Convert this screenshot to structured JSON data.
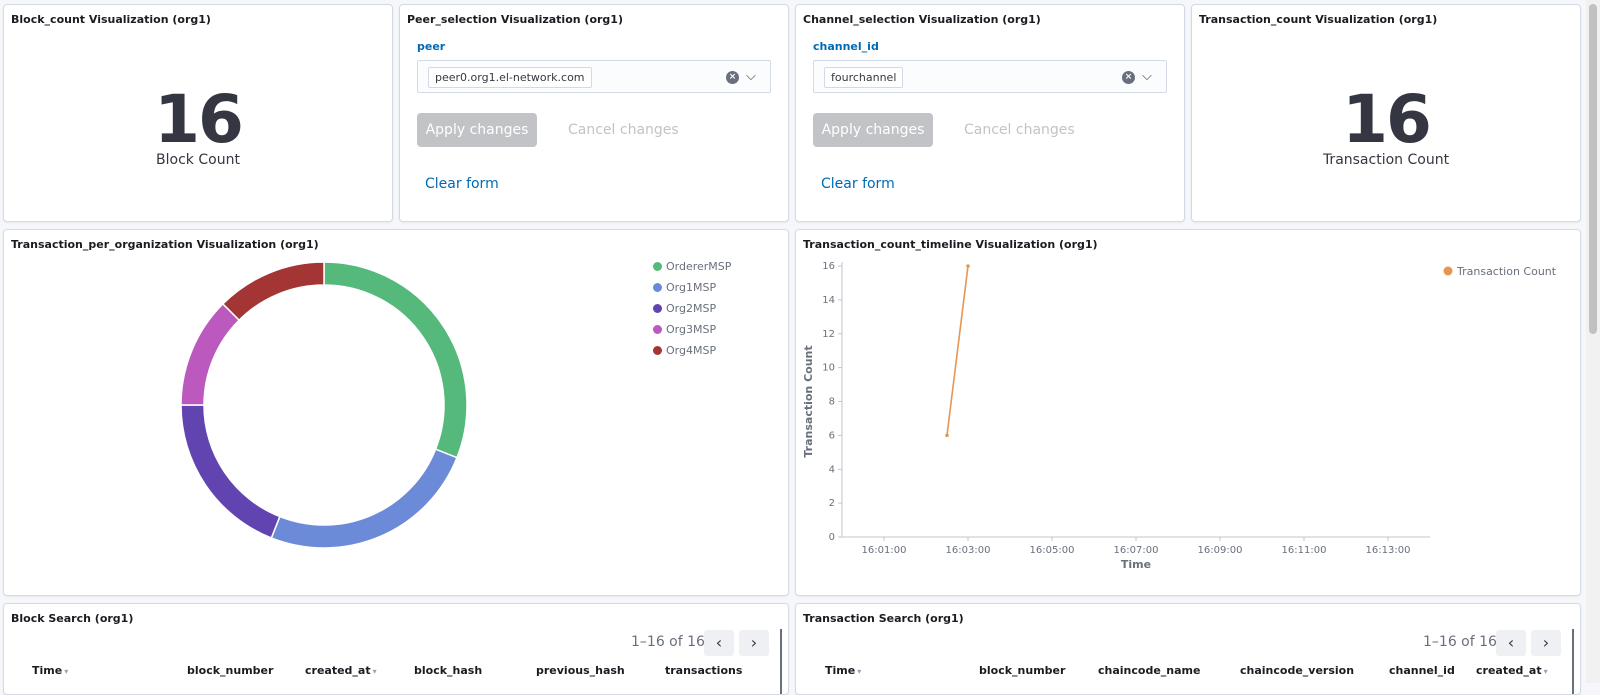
{
  "block_count": {
    "title": "Block_count Visualization (org1)",
    "value": "16",
    "label": "Block Count"
  },
  "peer_selection": {
    "title": "Peer_selection Visualization (org1)",
    "field_label": "peer",
    "selected_value": "peer0.org1.el-network.com",
    "apply_label": "Apply changes",
    "cancel_label": "Cancel changes",
    "clear_label": "Clear form"
  },
  "channel_selection": {
    "title": "Channel_selection Visualization (org1)",
    "field_label": "channel_id",
    "selected_value": "fourchannel",
    "apply_label": "Apply changes",
    "cancel_label": "Cancel changes",
    "clear_label": "Clear form"
  },
  "transaction_count": {
    "title": "Transaction_count Visualization (org1)",
    "value": "16",
    "label": "Transaction Count"
  },
  "tx_per_org": {
    "title": "Transaction_per_organization Visualization (org1)"
  },
  "tx_timeline": {
    "title": "Transaction_count_timeline Visualization (org1)"
  },
  "chart_data": [
    {
      "type": "pie",
      "donut": true,
      "categories": [
        "OrdererMSP",
        "Org1MSP",
        "Org2MSP",
        "Org3MSP",
        "Org4MSP"
      ],
      "values": [
        31,
        25,
        19,
        12.5,
        12.5
      ],
      "colors": [
        "#54b97b",
        "#6b8ad8",
        "#6244b1",
        "#bb59be",
        "#a33535"
      ],
      "legend_position": "top-right",
      "title": ""
    },
    {
      "type": "line",
      "series": [
        {
          "name": "Transaction Count",
          "color": "#e7964f",
          "points": [
            [
              "16:02:30",
              6
            ],
            [
              "16:03:00",
              16
            ]
          ]
        }
      ],
      "xlabel": "Time",
      "ylabel": "Transaction Count",
      "x_ticks": [
        "16:01:00",
        "16:03:00",
        "16:05:00",
        "16:07:00",
        "16:09:00",
        "16:11:00",
        "16:13:00"
      ],
      "y_ticks": [
        "0",
        "2",
        "4",
        "6",
        "8",
        "10",
        "12",
        "14",
        "16"
      ],
      "xlim": [
        "16:00:00",
        "16:14:00"
      ],
      "ylim": [
        0,
        16
      ],
      "legend_position": "top-right"
    }
  ],
  "block_search": {
    "title": "Block Search (org1)",
    "pager": "1–16 of 16",
    "prev_icon": "‹",
    "next_icon": "›",
    "columns": [
      "Time",
      "block_number",
      "created_at",
      "block_hash",
      "previous_hash",
      "transactions"
    ]
  },
  "transaction_search": {
    "title": "Transaction Search (org1)",
    "pager": "1–16 of 16",
    "prev_icon": "‹",
    "next_icon": "›",
    "columns": [
      "Time",
      "block_number",
      "chaincode_name",
      "chaincode_version",
      "channel_id",
      "created_at"
    ]
  }
}
